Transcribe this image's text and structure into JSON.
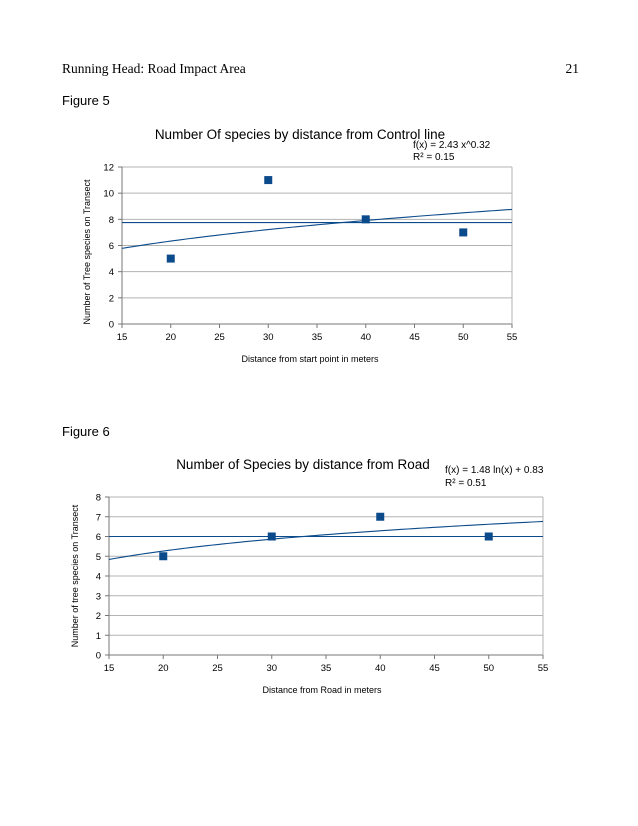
{
  "header": {
    "running_head": "Running Head: Road Impact Area",
    "page_number": "21"
  },
  "figures": [
    {
      "label": "Figure 5"
    },
    {
      "label": "Figure 6"
    }
  ],
  "chart_data": [
    {
      "type": "scatter",
      "title": "Number Of species by distance from Control line",
      "xlabel": "Distance from start point in meters",
      "ylabel": "Number of Tree species on Transect",
      "xlim": [
        15,
        55
      ],
      "ylim": [
        0,
        12
      ],
      "x_ticks": [
        15,
        20,
        25,
        30,
        35,
        40,
        45,
        50,
        55
      ],
      "y_ticks": [
        0,
        2,
        4,
        6,
        8,
        10,
        12
      ],
      "grid": true,
      "series": [
        {
          "x": [
            20,
            30,
            40,
            50
          ],
          "y": [
            5,
            11,
            8,
            7
          ],
          "marker": "square",
          "color": "#0b4a8b"
        }
      ],
      "trendlines": [
        {
          "kind": "power",
          "a": 2.43,
          "b": 0.32,
          "color": "#0b4a8b"
        },
        {
          "kind": "mean",
          "value": 7.75,
          "color": "#0b4a8b"
        }
      ],
      "equation": "f(x) = 2.43 x^0.32",
      "r_squared": "R² = 0.15"
    },
    {
      "type": "scatter",
      "title": "Number of Species by distance from Road",
      "xlabel": "Distance from Road in meters",
      "ylabel": "Number of tree species on Transect",
      "xlim": [
        15,
        55
      ],
      "ylim": [
        0,
        8
      ],
      "x_ticks": [
        15,
        20,
        25,
        30,
        35,
        40,
        45,
        50,
        55
      ],
      "y_ticks": [
        0,
        1,
        2,
        3,
        4,
        5,
        6,
        7,
        8
      ],
      "grid": true,
      "series": [
        {
          "x": [
            20,
            30,
            40,
            50
          ],
          "y": [
            5,
            6,
            7,
            6
          ],
          "marker": "square",
          "color": "#0b4a8b"
        }
      ],
      "trendlines": [
        {
          "kind": "log",
          "a": 1.48,
          "b": 0.83,
          "color": "#0b4a8b"
        },
        {
          "kind": "mean",
          "value": 6,
          "color": "#0b4a8b"
        }
      ],
      "equation": "f(x) = 1.48 ln(x) + 0.83",
      "r_squared": "R² = 0.51"
    }
  ]
}
